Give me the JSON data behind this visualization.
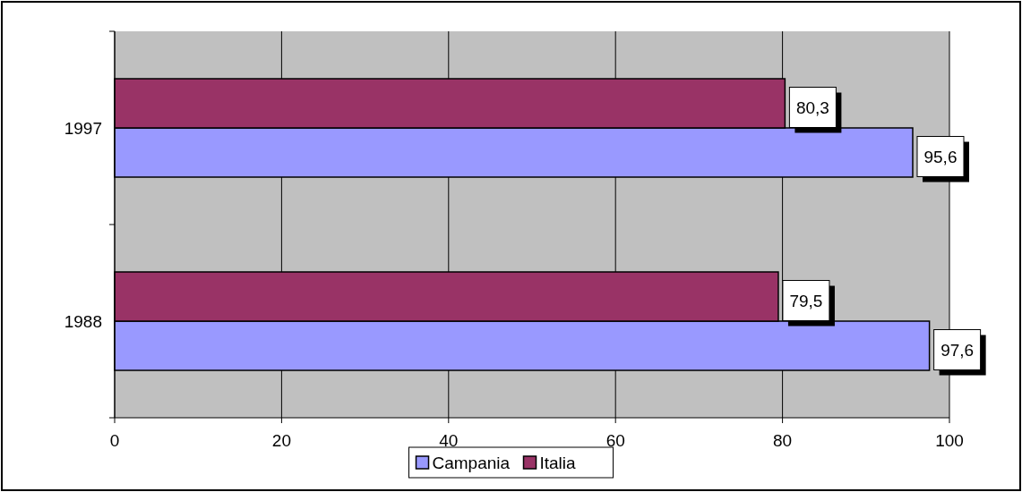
{
  "chart_data": {
    "type": "bar",
    "orientation": "horizontal",
    "categories": [
      "1997",
      "1988"
    ],
    "series": [
      {
        "name": "Campania",
        "color": "#9999ff",
        "values": [
          95.6,
          97.6
        ],
        "value_labels": [
          "95,6",
          "97,6"
        ]
      },
      {
        "name": "Italia",
        "color": "#993366",
        "values": [
          80.3,
          79.5
        ],
        "value_labels": [
          "80,3",
          "79,5"
        ]
      }
    ],
    "xlim": [
      0,
      100
    ],
    "xticks": [
      0,
      20,
      40,
      60,
      80,
      100
    ],
    "grid": "x",
    "legend": "bottom"
  }
}
